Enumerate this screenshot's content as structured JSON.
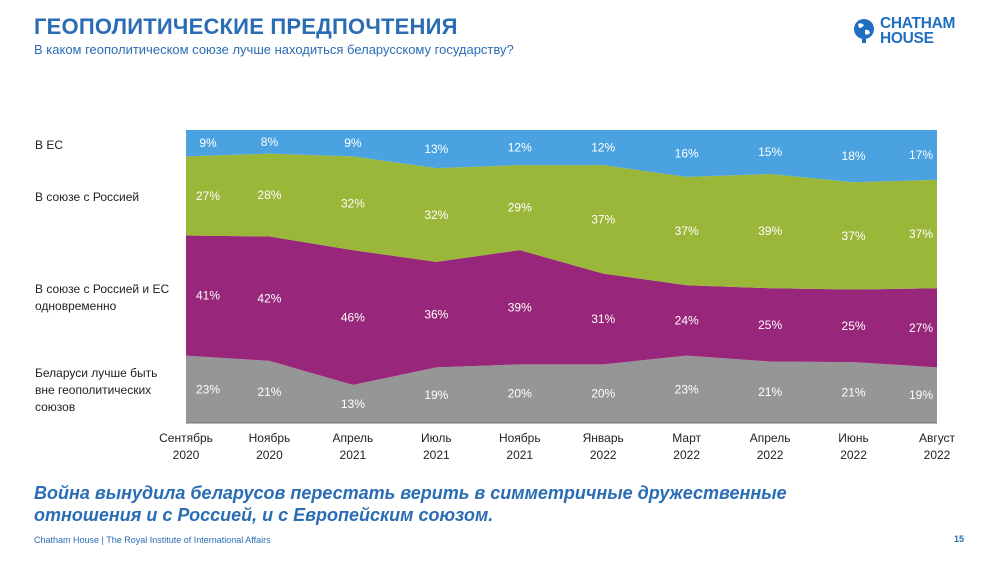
{
  "header": {
    "title": "ГЕОПОЛИТИЧЕСКИЕ ПРЕДПОЧТЕНИЯ",
    "subtitle": "В каком геополитическом союзе лучше находиться беларусскому государству?"
  },
  "logo": {
    "line1": "CHATHAM",
    "line2": "HOUSE",
    "color": "#1f6fc0"
  },
  "chart_data": {
    "type": "area",
    "stacked": true,
    "categories": [
      [
        "Сентябрь",
        "2020"
      ],
      [
        "Ноябрь",
        "2020"
      ],
      [
        "Апрель",
        "2021"
      ],
      [
        "Июль",
        "2021"
      ],
      [
        "Ноябрь",
        "2021"
      ],
      [
        "Январь",
        "2022"
      ],
      [
        "Март",
        "2022"
      ],
      [
        "Апрель",
        "2022"
      ],
      [
        "Июнь",
        "2022"
      ],
      [
        "Август",
        "2022"
      ]
    ],
    "series": [
      {
        "name": "Беларуси лучше быть вне геополитических союзов",
        "color": "#969696",
        "values": [
          23,
          21,
          13,
          19,
          20,
          20,
          23,
          21,
          21,
          19
        ]
      },
      {
        "name": "В союзе с Россией и ЕС одновременно",
        "color": "#98267a",
        "values": [
          41,
          42,
          46,
          36,
          39,
          31,
          24,
          25,
          25,
          27
        ]
      },
      {
        "name": "В союзе с Россией",
        "color": "#9ab73a",
        "values": [
          27,
          28,
          32,
          32,
          29,
          37,
          37,
          39,
          37,
          37
        ]
      },
      {
        "name": "В ЕС",
        "color": "#4aa3e0",
        "values": [
          9,
          8,
          9,
          13,
          12,
          12,
          16,
          15,
          18,
          17
        ]
      }
    ],
    "value_suffix": "%",
    "ylim": [
      0,
      100
    ],
    "legend_placement": "left"
  },
  "conclusion": [
    "Война вынудила беларусов перестать верить в симметричные дружественные",
    "отношения и с Россией, и с Европейским союзом."
  ],
  "footer": {
    "text": "Chatham House  |  The Royal Institute of International Affairs",
    "page": "15"
  }
}
